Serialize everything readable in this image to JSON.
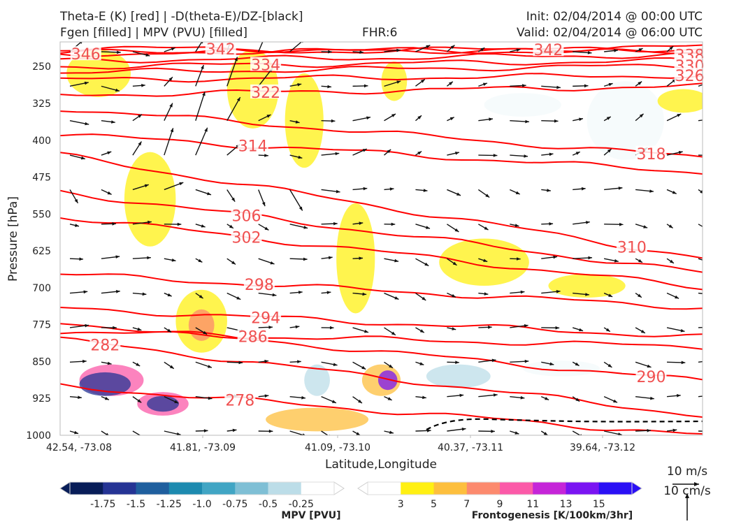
{
  "header": {
    "title_line1": "Theta-E (K) [red] | -D(theta-E)/DZ-[black]",
    "title_line2": "Fgen [filled] | MPV (PVU) [filled]",
    "fhr": "FHR:6",
    "init": "Init: 02/04/2014 @ 00:00 UTC",
    "valid": "Valid: 02/04/2014 @ 06:00 UTC"
  },
  "chart_data": {
    "type": "cross-section",
    "xlabel": "Latitude,Longitude",
    "ylabel": "Pressure [hPa]",
    "x_ticks": [
      "42.54, -73.08",
      "41.81, -73.09",
      "41.09, -73.10",
      "40.37, -73.11",
      "39.64, -73.12"
    ],
    "y_ticks": [
      "250",
      "325",
      "400",
      "475",
      "550",
      "625",
      "700",
      "775",
      "850",
      "925",
      "1000"
    ],
    "ylim": [
      200,
      1000
    ],
    "y_inverted": true,
    "theta_e_contours": [
      {
        "label": "346",
        "left_p": 225,
        "right_p": 210,
        "label_x_frac": 0.04
      },
      {
        "label": "342",
        "left_p": 212,
        "right_p": 222,
        "label_x_frac": 0.25
      },
      {
        "label": "342",
        "left_p": 222,
        "right_p": 214,
        "label_x_frac": 0.76
      },
      {
        "label": "338",
        "left_p": 238,
        "right_p": 226,
        "label_x_frac": 0.98
      },
      {
        "label": "334",
        "left_p": 250,
        "right_p": 238,
        "label_x_frac": 0.32
      },
      {
        "label": "330",
        "left_p": 262,
        "right_p": 248,
        "label_x_frac": 0.98
      },
      {
        "label": "326",
        "left_p": 277,
        "right_p": 268,
        "label_x_frac": 0.98
      },
      {
        "label": "322",
        "left_p": 308,
        "right_p": 290,
        "label_x_frac": 0.32
      },
      {
        "label": "318",
        "left_p": 335,
        "right_p": 435,
        "label_x_frac": 0.92
      },
      {
        "label": "314",
        "left_p": 388,
        "right_p": 465,
        "label_x_frac": 0.3
      },
      {
        "label": "310",
        "left_p": 430,
        "right_p": 640,
        "label_x_frac": 0.89
      },
      {
        "label": "306",
        "left_p": 505,
        "right_p": 670,
        "label_x_frac": 0.29
      },
      {
        "label": "302",
        "left_p": 555,
        "right_p": 700,
        "label_x_frac": 0.29
      },
      {
        "label": "298",
        "left_p": 672,
        "right_p": 740,
        "label_x_frac": 0.31
      },
      {
        "label": "294",
        "left_p": 742,
        "right_p": 800,
        "label_x_frac": 0.32
      },
      {
        "label": "290",
        "left_p": 770,
        "right_p": 890,
        "label_x_frac": 0.92
      },
      {
        "label": "286",
        "left_p": 790,
        "right_p": 820,
        "label_x_frac": 0.3
      },
      {
        "label": "282",
        "left_p": 805,
        "right_p": 960,
        "label_x_frac": 0.07
      },
      {
        "label": "278",
        "left_p": 900,
        "right_p": 1000,
        "label_x_frac": 0.28
      }
    ],
    "colors": {
      "theta_e": "#ff0000",
      "theta_e_label": "#f05050",
      "vectors": "#111111",
      "mpv_contour": "#a0aed4"
    },
    "mpv_colorbar": {
      "label": "MPV [PVU]",
      "ticks": [
        "-1.75",
        "-1.5",
        "-1.25",
        "-1.0",
        "-0.75",
        "-0.5",
        "-0.25"
      ],
      "colors": [
        "#081d58",
        "#253494",
        "#1f5f9e",
        "#1d8aaf",
        "#41a5c4",
        "#7fbfd5",
        "#bcdde8",
        "#ffffff"
      ]
    },
    "fgen_colorbar": {
      "label": "Frontogenesis [K/100km/3hr]",
      "ticks": [
        "3",
        "5",
        "7",
        "9",
        "11",
        "13",
        "15"
      ],
      "colors": [
        "#ffffff",
        "#fff013",
        "#fdbf3e",
        "#fc8a6e",
        "#fb5aa8",
        "#c525d8",
        "#7a14f2",
        "#2a10f5"
      ]
    },
    "vector_key": {
      "horizontal": "10 m/s",
      "vertical": "10 cm/s"
    }
  }
}
